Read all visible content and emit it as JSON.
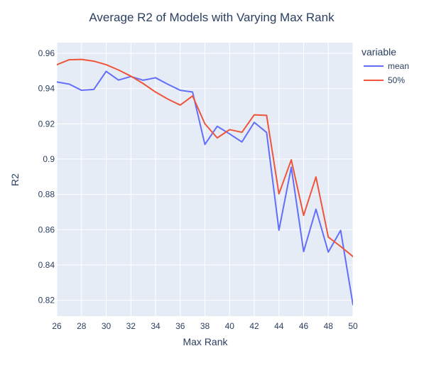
{
  "chart_data": {
    "type": "line",
    "title": "Average R2 of Models with Varying Max Rank",
    "xlabel": "Max Rank",
    "ylabel": "R2",
    "xlim": [
      26,
      50
    ],
    "ylim": [
      0.811,
      0.966
    ],
    "x_ticks": [
      26,
      28,
      30,
      32,
      34,
      36,
      38,
      40,
      42,
      44,
      46,
      48,
      50
    ],
    "x_tick_labels": [
      "26",
      "28",
      "30",
      "32",
      "34",
      "36",
      "38",
      "40",
      "42",
      "44",
      "46",
      "48",
      "50"
    ],
    "y_ticks": [
      0.82,
      0.84,
      0.86,
      0.88,
      0.9,
      0.92,
      0.94,
      0.96
    ],
    "y_tick_labels": [
      "0.82",
      "0.84",
      "0.86",
      "0.88",
      "0.9",
      "0.92",
      "0.94",
      "0.96"
    ],
    "grid": true,
    "legend": {
      "title": "variable",
      "position": "right"
    },
    "x": [
      26,
      27,
      28,
      29,
      30,
      31,
      32,
      33,
      34,
      35,
      36,
      37,
      38,
      39,
      40,
      41,
      42,
      43,
      44,
      45,
      46,
      47,
      48,
      49,
      50
    ],
    "series": [
      {
        "name": "mean",
        "color": "#636efa",
        "values": [
          0.9437,
          0.9425,
          0.939,
          0.9395,
          0.9497,
          0.9448,
          0.9468,
          0.9447,
          0.9461,
          0.9424,
          0.939,
          0.938,
          0.9083,
          0.9186,
          0.9143,
          0.9097,
          0.9208,
          0.9151,
          0.8597,
          0.8954,
          0.8476,
          0.8716,
          0.8473,
          0.8596,
          0.8175
        ]
      },
      {
        "name": "50%",
        "color": "#ef553b",
        "values": [
          0.9535,
          0.9563,
          0.9565,
          0.9555,
          0.9535,
          0.9505,
          0.947,
          0.9428,
          0.938,
          0.934,
          0.9306,
          0.9358,
          0.92,
          0.912,
          0.9167,
          0.9152,
          0.9251,
          0.9248,
          0.8803,
          0.8996,
          0.8681,
          0.8899,
          0.8558,
          0.8505,
          0.8448
        ]
      }
    ]
  },
  "colors": {
    "plot_background": "#e5ecf6",
    "grid": "#ffffff",
    "text": "#2a3f5f"
  }
}
